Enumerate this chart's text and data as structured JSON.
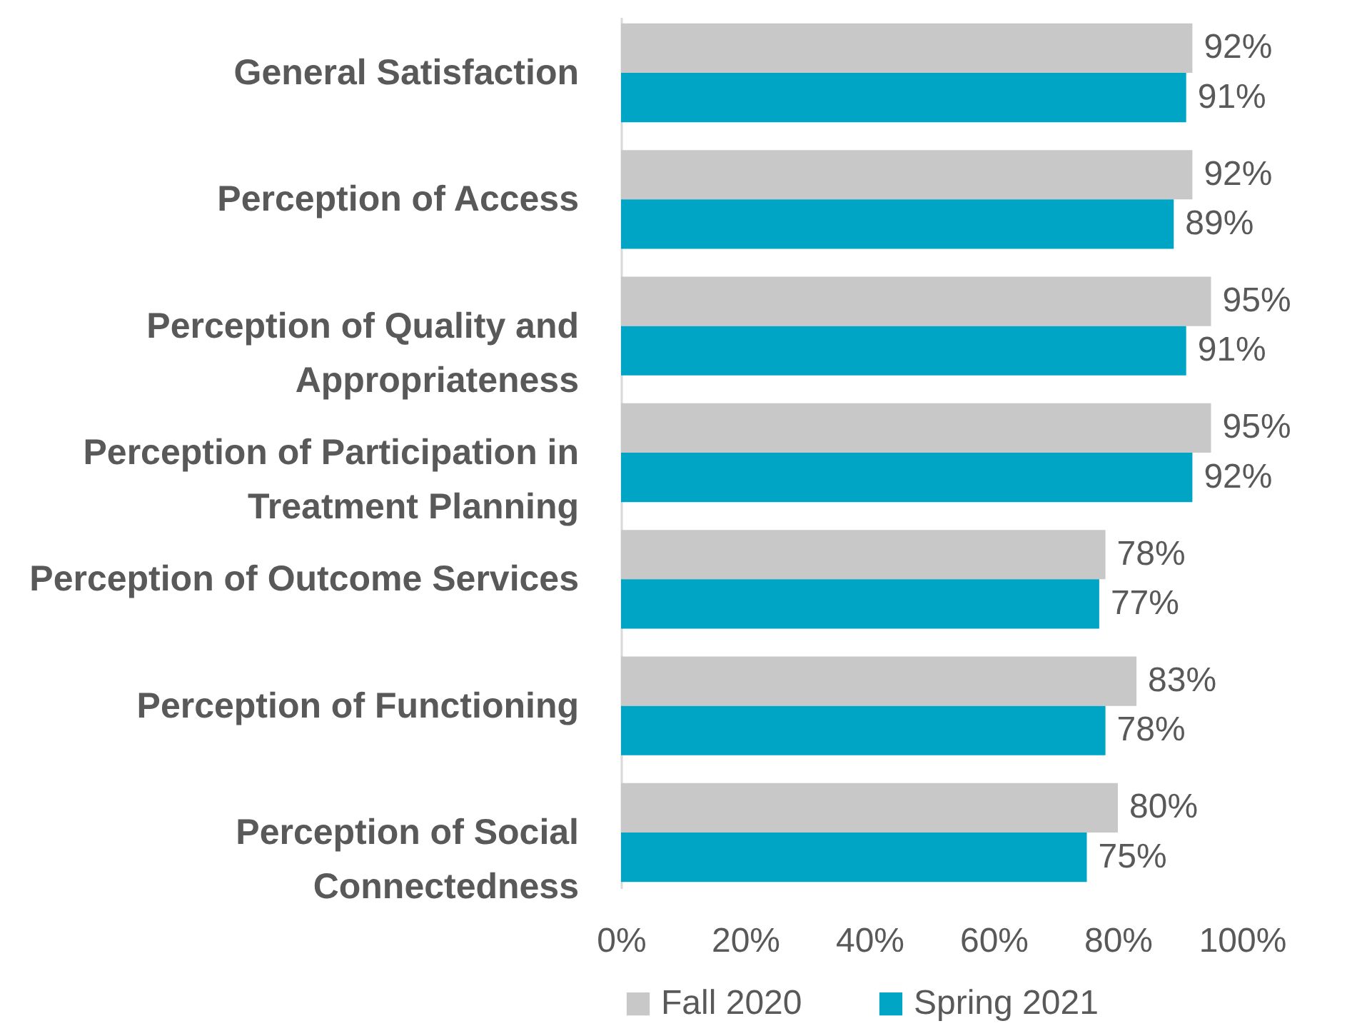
{
  "chart_data": {
    "type": "bar",
    "orientation": "horizontal",
    "categories": [
      "General Satisfaction",
      "Perception of Access",
      "Perception of Quality and Appropriateness",
      "Perception of Participation in Treatment Planning",
      "Perception of Outcome Services",
      "Perception of Functioning",
      "Perception of Social Connectedness"
    ],
    "series": [
      {
        "name": "Fall 2020",
        "color": "#c8c8c8",
        "values": [
          92,
          92,
          95,
          95,
          78,
          83,
          80
        ],
        "value_labels": [
          "92%",
          "92%",
          "95%",
          "95%",
          "78%",
          "83%",
          "80%"
        ]
      },
      {
        "name": "Spring 2021",
        "color": "#00a5c6",
        "values": [
          91,
          89,
          91,
          92,
          77,
          78,
          75
        ],
        "value_labels": [
          "91%",
          "89%",
          "91%",
          "92%",
          "77%",
          "78%",
          "75%"
        ]
      }
    ],
    "xlim": [
      0,
      100
    ],
    "xticks": [
      {
        "value": 0,
        "label": "0%"
      },
      {
        "value": 20,
        "label": "20%"
      },
      {
        "value": 40,
        "label": "40%"
      },
      {
        "value": 60,
        "label": "60%"
      },
      {
        "value": 80,
        "label": "80%"
      },
      {
        "value": 100,
        "label": "100%"
      }
    ],
    "grid": false,
    "legend": "bottom"
  }
}
